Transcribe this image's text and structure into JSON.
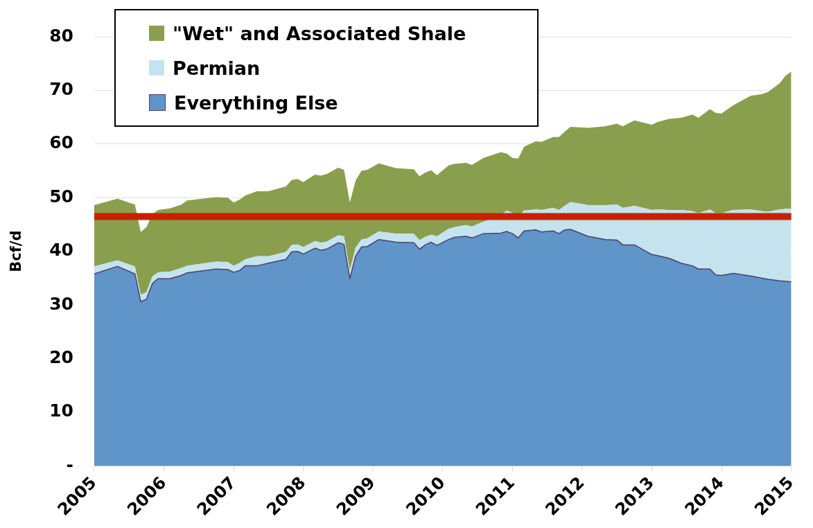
{
  "chart_data": {
    "type": "area",
    "stacked": true,
    "ylabel": "Bcf/d",
    "xlim": [
      "2005",
      "2015"
    ],
    "xticks": [
      "2005",
      "2006",
      "2007",
      "2008",
      "2009",
      "2010",
      "2011",
      "2012",
      "2013",
      "2014",
      "2015"
    ],
    "ylim": [
      0,
      80
    ],
    "yticks": [
      {
        "value": 0,
        "label": "-"
      },
      10,
      20,
      30,
      40,
      50,
      60,
      70,
      80
    ],
    "grid": "y",
    "legend": "top left",
    "x": [
      "2005-01",
      "2005-05",
      "2005-08",
      "2005-09",
      "2005-10",
      "2005-11",
      "2005-12",
      "2006-02",
      "2006-04",
      "2006-05",
      "2006-10",
      "2006-12",
      "2007-01",
      "2007-02",
      "2007-03",
      "2007-05",
      "2007-07",
      "2007-10",
      "2007-11",
      "2007-12",
      "2008-01",
      "2008-03",
      "2008-04",
      "2008-05",
      "2008-07",
      "2008-08",
      "2008-09",
      "2008-10",
      "2008-11",
      "2008-12",
      "2009-02",
      "2009-05",
      "2009-08",
      "2009-09",
      "2009-10",
      "2009-11",
      "2009-12",
      "2010-02",
      "2010-03",
      "2010-05",
      "2010-06",
      "2010-08",
      "2010-11",
      "2010-12",
      "2011-01",
      "2011-02",
      "2011-03",
      "2011-05",
      "2011-06",
      "2011-08",
      "2011-09",
      "2011-10",
      "2011-11",
      "2012-02",
      "2012-05",
      "2012-07",
      "2012-08",
      "2012-10",
      "2013-01",
      "2013-02",
      "2013-04",
      "2013-06",
      "2013-08",
      "2013-09",
      "2013-11",
      "2013-12",
      "2014-01",
      "2014-03",
      "2014-06",
      "2014-08",
      "2014-09",
      "2014-11",
      "2014-12",
      "2015-01"
    ],
    "series": [
      {
        "name": "Everything Else",
        "color": "#5f95c8",
        "values": [
          35.8,
          37.2,
          35.8,
          30.6,
          31.1,
          34.0,
          34.9,
          34.9,
          35.5,
          36.0,
          36.7,
          36.6,
          36.1,
          36.4,
          37.3,
          37.3,
          37.8,
          38.5,
          39.9,
          40.0,
          39.5,
          40.6,
          40.2,
          40.4,
          41.6,
          41.3,
          34.9,
          39.1,
          40.8,
          40.9,
          42.2,
          41.7,
          41.6,
          40.4,
          41.2,
          41.7,
          41.1,
          42.2,
          42.6,
          42.8,
          42.5,
          43.3,
          43.4,
          43.7,
          43.3,
          42.5,
          43.8,
          44.0,
          43.6,
          43.8,
          43.3,
          44.0,
          44.1,
          42.8,
          42.2,
          42.1,
          41.2,
          41.2,
          39.4,
          39.2,
          38.7,
          37.8,
          37.3,
          36.7,
          36.7,
          35.6,
          35.5,
          35.9,
          35.4,
          35.0,
          34.8,
          34.5,
          34.4,
          34.3
        ]
      },
      {
        "name": "Permian",
        "color": "#c4e3ee",
        "values": [
          1.4,
          1.1,
          1.4,
          1.3,
          1.3,
          1.3,
          1.2,
          1.3,
          1.4,
          1.3,
          1.4,
          1.4,
          1.2,
          1.4,
          1.2,
          1.8,
          1.3,
          1.4,
          1.3,
          1.3,
          1.3,
          1.3,
          1.4,
          1.4,
          1.4,
          1.5,
          1.5,
          1.6,
          1.4,
          1.5,
          1.5,
          1.6,
          1.7,
          1.7,
          1.5,
          1.4,
          1.7,
          2.0,
          1.9,
          2.1,
          2.1,
          2.2,
          3.3,
          3.9,
          3.9,
          4.0,
          3.8,
          3.8,
          4.1,
          4.3,
          4.4,
          4.5,
          5.1,
          5.8,
          6.4,
          6.6,
          6.9,
          7.3,
          8.3,
          8.6,
          9.0,
          9.9,
          10.2,
          10.4,
          11.1,
          11.5,
          11.6,
          11.8,
          12.4,
          12.5,
          12.6,
          13.3,
          13.5,
          13.6
        ]
      },
      {
        "name": "\"Wet\" and Associated Shale",
        "color": "#8a9f4d",
        "values": [
          11.4,
          11.5,
          11.5,
          11.7,
          12.1,
          11.6,
          11.6,
          11.8,
          11.8,
          12.2,
          12.0,
          12.0,
          11.8,
          11.8,
          11.9,
          12.1,
          12.1,
          12.2,
          12.1,
          12.2,
          12.1,
          12.4,
          12.5,
          12.6,
          12.6,
          12.4,
          12.7,
          12.5,
          12.8,
          12.8,
          12.7,
          12.2,
          12.0,
          11.9,
          12.0,
          12.0,
          11.4,
          11.8,
          11.8,
          11.6,
          11.5,
          11.9,
          11.8,
          10.6,
          10.2,
          10.8,
          11.9,
          12.7,
          12.7,
          13.2,
          13.6,
          13.8,
          14.0,
          14.4,
          14.7,
          15.1,
          15.2,
          15.9,
          15.9,
          16.3,
          17.0,
          17.2,
          18.0,
          17.8,
          18.7,
          18.7,
          18.6,
          19.5,
          21.2,
          21.8,
          22.3,
          23.5,
          24.8,
          25.6
        ]
      }
    ],
    "ref_lines": [
      {
        "axis": "y",
        "value": 46.5,
        "color": "#cc1f00"
      }
    ]
  }
}
